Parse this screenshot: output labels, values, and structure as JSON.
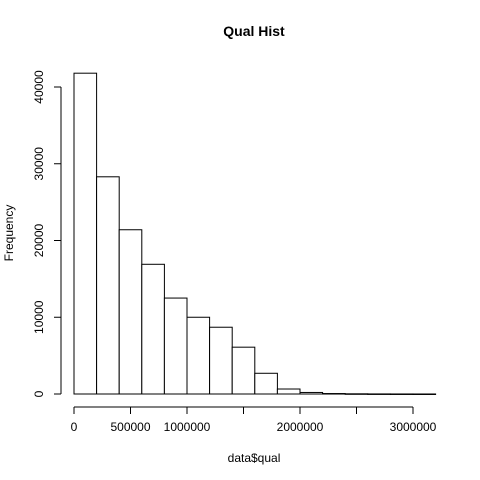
{
  "chart_data": {
    "type": "bar",
    "title": "Qual Hist",
    "xlabel": "data$qual",
    "ylabel": "Frequency",
    "bin_width": 200000,
    "bins": [
      {
        "x0": 0,
        "x1": 200000,
        "count": 41800
      },
      {
        "x0": 200000,
        "x1": 400000,
        "count": 28300
      },
      {
        "x0": 400000,
        "x1": 600000,
        "count": 21400
      },
      {
        "x0": 600000,
        "x1": 800000,
        "count": 16900
      },
      {
        "x0": 800000,
        "x1": 1000000,
        "count": 12500
      },
      {
        "x0": 1000000,
        "x1": 1200000,
        "count": 10000
      },
      {
        "x0": 1200000,
        "x1": 1400000,
        "count": 8700
      },
      {
        "x0": 1400000,
        "x1": 1600000,
        "count": 6100
      },
      {
        "x0": 1600000,
        "x1": 1800000,
        "count": 2700
      },
      {
        "x0": 1800000,
        "x1": 2000000,
        "count": 650
      },
      {
        "x0": 2000000,
        "x1": 2200000,
        "count": 200
      },
      {
        "x0": 2200000,
        "x1": 2400000,
        "count": 60
      },
      {
        "x0": 2400000,
        "x1": 2600000,
        "count": 25
      },
      {
        "x0": 2600000,
        "x1": 2800000,
        "count": 10
      },
      {
        "x0": 2800000,
        "x1": 3000000,
        "count": 5
      },
      {
        "x0": 3000000,
        "x1": 3200000,
        "count": 3
      }
    ],
    "x_ticks": [
      {
        "value": 0,
        "label": "0"
      },
      {
        "value": 500000,
        "label": "500000"
      },
      {
        "value": 1000000,
        "label": "1000000"
      },
      {
        "value": 1500000,
        "label": ""
      },
      {
        "value": 2000000,
        "label": "2000000"
      },
      {
        "value": 2500000,
        "label": ""
      },
      {
        "value": 3000000,
        "label": "3000000"
      }
    ],
    "y_ticks": [
      {
        "value": 0,
        "label": "0"
      },
      {
        "value": 10000,
        "label": "10000"
      },
      {
        "value": 20000,
        "label": "20000"
      },
      {
        "value": 30000,
        "label": "30000"
      },
      {
        "value": 40000,
        "label": "40000"
      }
    ],
    "xlim": [
      0,
      3000000
    ],
    "ylim": [
      0,
      40000
    ],
    "grid": false,
    "bar_fill": "#ffffff",
    "bar_stroke": "#000000"
  }
}
